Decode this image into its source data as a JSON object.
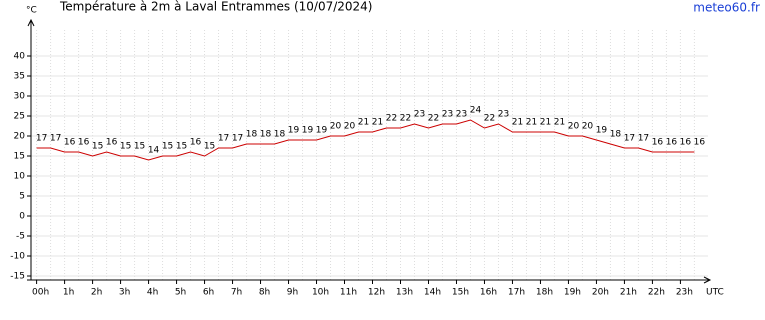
{
  "chart_data": {
    "type": "line",
    "title": "Température à 2m à Laval Entrammes (10/07/2024)",
    "y_unit": "°C",
    "x_unit": "UTC",
    "source": "meteo60.fr",
    "x": [
      0,
      0.5,
      1,
      1.5,
      2,
      2.5,
      3,
      3.5,
      4,
      4.5,
      5,
      5.5,
      6,
      6.5,
      7,
      7.5,
      8,
      8.5,
      9,
      9.5,
      10,
      10.5,
      11,
      11.5,
      12,
      12.5,
      13,
      13.5,
      14,
      14.5,
      15,
      15.5,
      16,
      16.5,
      17,
      17.5,
      18,
      18.5,
      19,
      19.5,
      20,
      20.5,
      21,
      21.5,
      22,
      22.5,
      23,
      23.5
    ],
    "series": [
      {
        "name": "Température",
        "color": "#cc0000",
        "values": [
          17,
          17,
          16,
          16,
          15,
          16,
          15,
          15,
          14,
          15,
          15,
          16,
          15,
          17,
          17,
          18,
          18,
          18,
          19,
          19,
          19,
          20,
          20,
          21,
          21,
          22,
          22,
          23,
          22,
          23,
          23,
          24,
          22,
          23,
          21,
          21,
          21,
          21,
          20,
          20,
          19,
          18,
          17,
          17,
          16,
          16,
          16,
          16
        ]
      }
    ],
    "xlim": [
      -0.2,
      24.7
    ],
    "xticks": [
      {
        "value": 0,
        "label": "00h"
      },
      {
        "value": 1,
        "label": "1h"
      },
      {
        "value": 2,
        "label": "2h"
      },
      {
        "value": 3,
        "label": "3h"
      },
      {
        "value": 4,
        "label": "4h"
      },
      {
        "value": 5,
        "label": "5h"
      },
      {
        "value": 6,
        "label": "6h"
      },
      {
        "value": 7,
        "label": "7h"
      },
      {
        "value": 8,
        "label": "8h"
      },
      {
        "value": 9,
        "label": "9h"
      },
      {
        "value": 10,
        "label": "10h"
      },
      {
        "value": 11,
        "label": "11h"
      },
      {
        "value": 12,
        "label": "12h"
      },
      {
        "value": 13,
        "label": "13h"
      },
      {
        "value": 14,
        "label": "14h"
      },
      {
        "value": 15,
        "label": "15h"
      },
      {
        "value": 16,
        "label": "16h"
      },
      {
        "value": 17,
        "label": "17h"
      },
      {
        "value": 18,
        "label": "18h"
      },
      {
        "value": 19,
        "label": "19h"
      },
      {
        "value": 20,
        "label": "20h"
      },
      {
        "value": 21,
        "label": "21h"
      },
      {
        "value": 22,
        "label": "22h"
      },
      {
        "value": 23,
        "label": "23h"
      }
    ],
    "ylim": [
      -16,
      49
    ],
    "yticks": [
      -15,
      -10,
      -5,
      0,
      5,
      10,
      15,
      20,
      25,
      30,
      35,
      40
    ],
    "grid": true
  }
}
